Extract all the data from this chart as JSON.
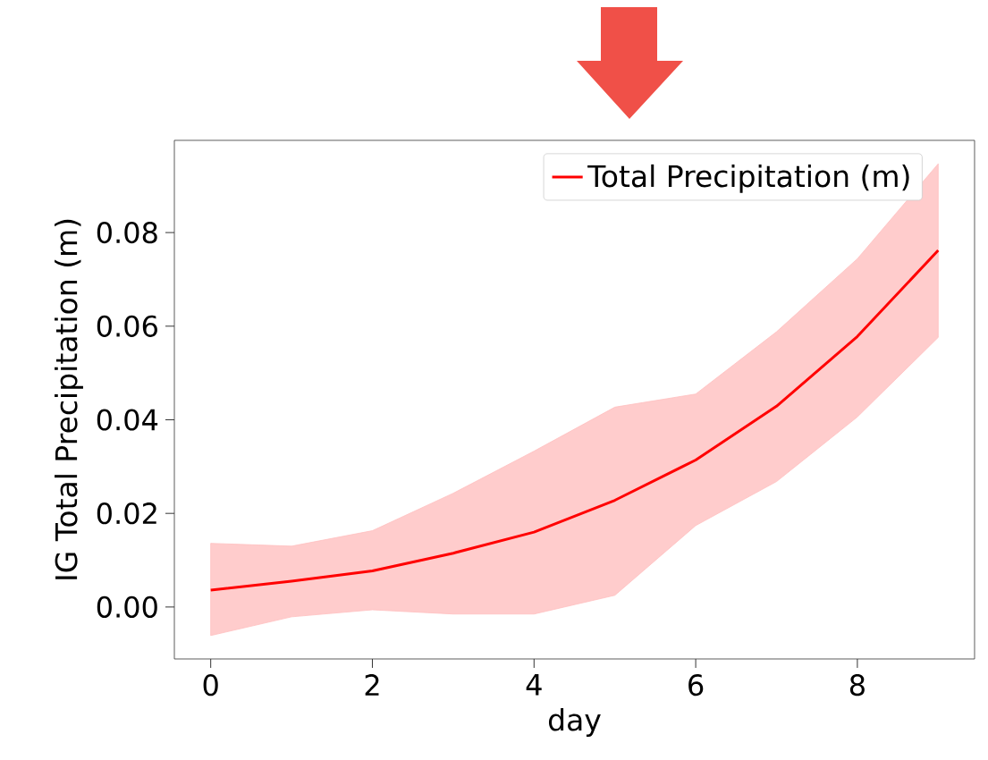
{
  "chart_data": {
    "type": "line",
    "xlabel": "day",
    "ylabel": "IG Total Precipitation (m)",
    "x": [
      0,
      1,
      2,
      3,
      4,
      5,
      6,
      7,
      8,
      9
    ],
    "series": [
      {
        "name": "Total Precipitation (m)",
        "color": "#ff0000",
        "values": [
          0.0036,
          0.0055,
          0.0077,
          0.0115,
          0.016,
          0.0228,
          0.0314,
          0.0429,
          0.0578,
          0.0762
        ],
        "lower": [
          -0.0061,
          -0.0021,
          -0.0006,
          -0.0015,
          -0.0015,
          0.0025,
          0.0174,
          0.0268,
          0.0406,
          0.0576
        ],
        "upper": [
          0.0136,
          0.013,
          0.0163,
          0.0243,
          0.0333,
          0.0427,
          0.0455,
          0.0588,
          0.0744,
          0.0947
        ]
      }
    ],
    "xlim": [
      -0.45,
      9.45
    ],
    "ylim": [
      -0.0111,
      0.0997
    ],
    "xticks": [
      0,
      2,
      4,
      6,
      8
    ],
    "yticks": [
      {
        "value": 0,
        "label": "0.00"
      },
      0.02,
      0.04,
      0.06,
      0.08
    ],
    "grid": false,
    "legend": "top right",
    "marker": "none",
    "line_style": "solid"
  }
}
